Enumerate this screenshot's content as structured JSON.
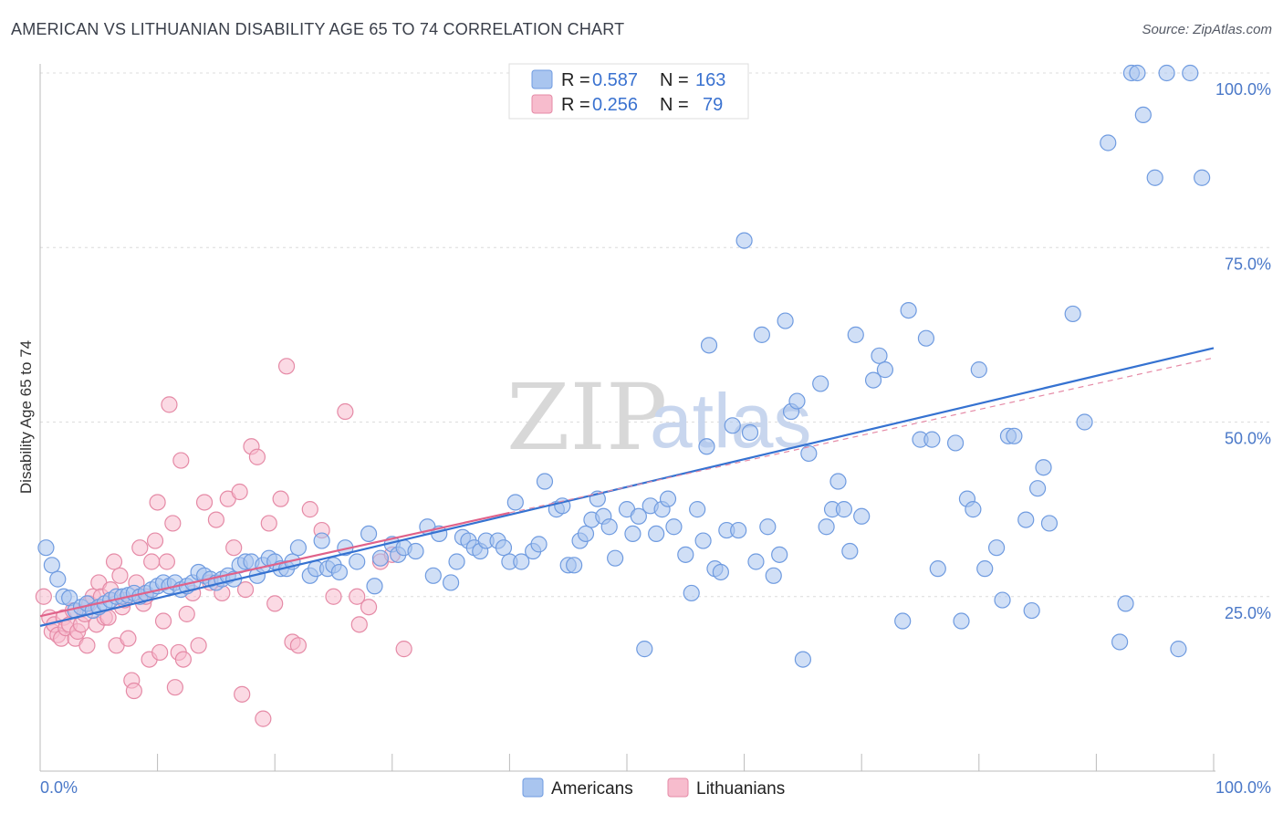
{
  "title": "AMERICAN VS LITHUANIAN DISABILITY AGE 65 TO 74 CORRELATION CHART",
  "source": "Source: ZipAtlas.com",
  "watermark": {
    "zip": "ZIP",
    "atlas": "atlas"
  },
  "legend_top": {
    "r_label": "R =",
    "n_label": "N =",
    "items": [
      {
        "r": "0.587",
        "n": "163",
        "color": "#a9c5ef",
        "stroke": "#6f9be0"
      },
      {
        "r": "0.256",
        "n": " 79",
        "color": "#f7bccd",
        "stroke": "#e58aa6"
      }
    ]
  },
  "legend_bottom": [
    {
      "label": "Americans",
      "color": "#a9c5ef",
      "stroke": "#6f9be0"
    },
    {
      "label": "Lithuanians",
      "color": "#f7bccd",
      "stroke": "#e58aa6"
    }
  ],
  "chart_data": {
    "type": "scatter",
    "title": "AMERICAN VS LITHUANIAN DISABILITY AGE 65 TO 74 CORRELATION CHART",
    "xlabel": "",
    "ylabel": "Disability Age 65 to 74",
    "xlim": [
      0,
      100
    ],
    "ylim": [
      0,
      100
    ],
    "x_tick_labels": [
      "0.0%",
      "100.0%"
    ],
    "y_tick_labels": [
      "25.0%",
      "50.0%",
      "75.0%",
      "100.0%"
    ],
    "y_ticks": [
      25,
      50,
      75,
      100
    ],
    "grid": true,
    "legend_position": "top-center",
    "series": [
      {
        "name": "Americans",
        "color": "#6f9be0",
        "fill": "#a9c5ef",
        "trend": {
          "x": [
            0,
            100
          ],
          "y": [
            20.8,
            60.6
          ]
        },
        "points": [
          [
            0.5,
            32
          ],
          [
            1,
            29.5
          ],
          [
            1.5,
            27.5
          ],
          [
            2,
            25
          ],
          [
            2.5,
            24.8
          ],
          [
            3,
            23
          ],
          [
            3.5,
            23.5
          ],
          [
            4,
            24
          ],
          [
            4.5,
            23
          ],
          [
            5,
            23.5
          ],
          [
            5.5,
            24
          ],
          [
            6,
            24.5
          ],
          [
            6.5,
            25
          ],
          [
            7,
            25
          ],
          [
            7.5,
            25.2
          ],
          [
            8,
            25.5
          ],
          [
            8.5,
            25
          ],
          [
            9,
            25.5
          ],
          [
            9.5,
            26
          ],
          [
            10,
            26.5
          ],
          [
            10.5,
            27
          ],
          [
            11,
            26.5
          ],
          [
            11.5,
            27
          ],
          [
            12,
            26
          ],
          [
            12.5,
            26.5
          ],
          [
            13,
            27
          ],
          [
            13.5,
            28.5
          ],
          [
            14,
            28
          ],
          [
            14.5,
            27.5
          ],
          [
            15,
            27
          ],
          [
            15.5,
            27.5
          ],
          [
            16,
            28
          ],
          [
            16.5,
            27.5
          ],
          [
            17,
            29.5
          ],
          [
            17.5,
            30
          ],
          [
            18,
            30
          ],
          [
            18.5,
            28
          ],
          [
            19,
            29.5
          ],
          [
            19.5,
            30.5
          ],
          [
            20,
            30
          ],
          [
            20.5,
            29
          ],
          [
            21,
            29
          ],
          [
            21.5,
            30
          ],
          [
            22,
            32
          ],
          [
            23,
            28
          ],
          [
            23.5,
            29
          ],
          [
            24,
            33
          ],
          [
            24.5,
            29
          ],
          [
            25,
            29.5
          ],
          [
            25.5,
            28.5
          ],
          [
            26,
            32
          ],
          [
            27,
            30
          ],
          [
            28,
            34
          ],
          [
            28.5,
            26.5
          ],
          [
            29,
            30.5
          ],
          [
            30,
            32.5
          ],
          [
            30.5,
            31
          ],
          [
            31,
            32
          ],
          [
            32,
            31.5
          ],
          [
            33,
            35
          ],
          [
            33.5,
            28
          ],
          [
            34,
            34
          ],
          [
            35,
            27
          ],
          [
            35.5,
            30
          ],
          [
            36,
            33.5
          ],
          [
            36.5,
            33
          ],
          [
            37,
            32
          ],
          [
            37.5,
            31.5
          ],
          [
            38,
            33
          ],
          [
            39,
            33
          ],
          [
            39.5,
            32
          ],
          [
            40,
            30
          ],
          [
            40.5,
            38.5
          ],
          [
            41,
            30
          ],
          [
            42,
            31.5
          ],
          [
            42.5,
            32.5
          ],
          [
            43,
            41.5
          ],
          [
            44,
            37.5
          ],
          [
            44.5,
            38
          ],
          [
            45,
            29.5
          ],
          [
            45.5,
            29.5
          ],
          [
            46,
            33
          ],
          [
            46.5,
            34
          ],
          [
            47,
            36
          ],
          [
            47.5,
            39
          ],
          [
            48,
            36.5
          ],
          [
            48.5,
            35
          ],
          [
            49,
            30.5
          ],
          [
            50,
            37.5
          ],
          [
            50.5,
            34
          ],
          [
            51,
            36.5
          ],
          [
            51.5,
            17.5
          ],
          [
            52,
            38
          ],
          [
            52.5,
            34
          ],
          [
            53,
            37.5
          ],
          [
            53.5,
            39
          ],
          [
            54,
            35
          ],
          [
            55,
            31
          ],
          [
            55.5,
            25.5
          ],
          [
            56,
            37.5
          ],
          [
            56.5,
            33
          ],
          [
            56.8,
            46.5
          ],
          [
            57,
            61
          ],
          [
            57.5,
            29
          ],
          [
            58,
            28.5
          ],
          [
            58.5,
            34.5
          ],
          [
            59,
            49.5
          ],
          [
            59.5,
            34.5
          ],
          [
            60,
            76
          ],
          [
            60.5,
            48.5
          ],
          [
            61,
            30
          ],
          [
            61.5,
            62.5
          ],
          [
            62,
            35
          ],
          [
            62.5,
            28
          ],
          [
            63,
            31
          ],
          [
            63.5,
            64.5
          ],
          [
            64,
            51.5
          ],
          [
            64.5,
            53
          ],
          [
            65,
            16
          ],
          [
            65.5,
            45.5
          ],
          [
            66.5,
            55.5
          ],
          [
            67,
            35
          ],
          [
            67.5,
            37.5
          ],
          [
            68,
            41.5
          ],
          [
            68.5,
            37.5
          ],
          [
            69,
            31.5
          ],
          [
            69.5,
            62.5
          ],
          [
            70,
            36.5
          ],
          [
            71,
            56
          ],
          [
            71.5,
            59.5
          ],
          [
            72,
            57.5
          ],
          [
            73.5,
            21.5
          ],
          [
            74,
            66
          ],
          [
            75,
            47.5
          ],
          [
            75.5,
            62
          ],
          [
            76,
            47.5
          ],
          [
            76.5,
            29
          ],
          [
            78,
            47
          ],
          [
            78.5,
            21.5
          ],
          [
            79,
            39
          ],
          [
            79.5,
            37.5
          ],
          [
            80,
            57.5
          ],
          [
            80.5,
            29
          ],
          [
            81.5,
            32
          ],
          [
            82,
            24.5
          ],
          [
            82.5,
            48
          ],
          [
            83,
            48
          ],
          [
            84,
            36
          ],
          [
            84.5,
            23
          ],
          [
            85,
            40.5
          ],
          [
            85.5,
            43.5
          ],
          [
            86,
            35.5
          ],
          [
            88,
            65.5
          ],
          [
            89,
            50
          ],
          [
            91,
            90
          ],
          [
            92,
            18.5
          ],
          [
            92.5,
            24
          ],
          [
            93,
            100
          ],
          [
            93.5,
            100
          ],
          [
            94,
            94
          ],
          [
            95,
            85
          ],
          [
            96,
            100
          ],
          [
            97,
            17.5
          ],
          [
            98,
            100
          ],
          [
            99,
            85
          ]
        ]
      },
      {
        "name": "Lithuanians",
        "color": "#e58aa6",
        "fill": "#f7bccd",
        "trend": {
          "x": [
            0,
            40
          ],
          "y": [
            22.2,
            37
          ]
        },
        "points": [
          [
            0.3,
            25
          ],
          [
            0.8,
            22
          ],
          [
            1,
            20
          ],
          [
            1.2,
            21
          ],
          [
            1.5,
            19.5
          ],
          [
            1.8,
            19
          ],
          [
            2,
            22
          ],
          [
            2.2,
            20.5
          ],
          [
            2.5,
            21
          ],
          [
            2.8,
            23
          ],
          [
            3,
            19
          ],
          [
            3.2,
            20
          ],
          [
            3.5,
            21
          ],
          [
            3.8,
            22.5
          ],
          [
            4,
            18
          ],
          [
            4.2,
            24
          ],
          [
            4.5,
            25
          ],
          [
            4.8,
            21
          ],
          [
            5,
            27
          ],
          [
            5.2,
            25
          ],
          [
            5.5,
            22
          ],
          [
            5.8,
            22
          ],
          [
            6,
            26
          ],
          [
            6.3,
            30
          ],
          [
            6.5,
            18
          ],
          [
            6.8,
            28
          ],
          [
            7,
            23.5
          ],
          [
            7.2,
            24.5
          ],
          [
            7.5,
            19
          ],
          [
            7.8,
            13
          ],
          [
            8,
            11.5
          ],
          [
            8.2,
            27
          ],
          [
            8.5,
            32
          ],
          [
            8.8,
            24
          ],
          [
            9,
            25
          ],
          [
            9.3,
            16
          ],
          [
            9.5,
            30
          ],
          [
            9.8,
            33
          ],
          [
            10,
            38.5
          ],
          [
            10.2,
            17
          ],
          [
            10.5,
            21.5
          ],
          [
            10.8,
            30
          ],
          [
            11,
            52.5
          ],
          [
            11.3,
            35.5
          ],
          [
            11.5,
            12
          ],
          [
            11.8,
            17
          ],
          [
            12,
            44.5
          ],
          [
            12.2,
            16
          ],
          [
            12.5,
            22.5
          ],
          [
            13,
            25.5
          ],
          [
            13.5,
            18
          ],
          [
            14,
            38.5
          ],
          [
            14.5,
            27
          ],
          [
            15,
            36
          ],
          [
            15.5,
            25.5
          ],
          [
            16,
            39
          ],
          [
            16.5,
            32
          ],
          [
            17,
            40
          ],
          [
            17.2,
            11
          ],
          [
            17.5,
            26
          ],
          [
            18,
            46.5
          ],
          [
            18.5,
            45
          ],
          [
            19,
            7.5
          ],
          [
            19.5,
            35.5
          ],
          [
            20,
            24
          ],
          [
            20.5,
            39
          ],
          [
            21,
            58
          ],
          [
            21.5,
            18.5
          ],
          [
            22,
            18
          ],
          [
            23,
            37.5
          ],
          [
            24,
            34.5
          ],
          [
            25,
            25
          ],
          [
            26,
            51.5
          ],
          [
            27,
            25
          ],
          [
            27.2,
            21
          ],
          [
            28,
            23.5
          ],
          [
            29,
            30
          ],
          [
            30,
            31
          ],
          [
            31,
            17.5
          ]
        ]
      }
    ]
  }
}
